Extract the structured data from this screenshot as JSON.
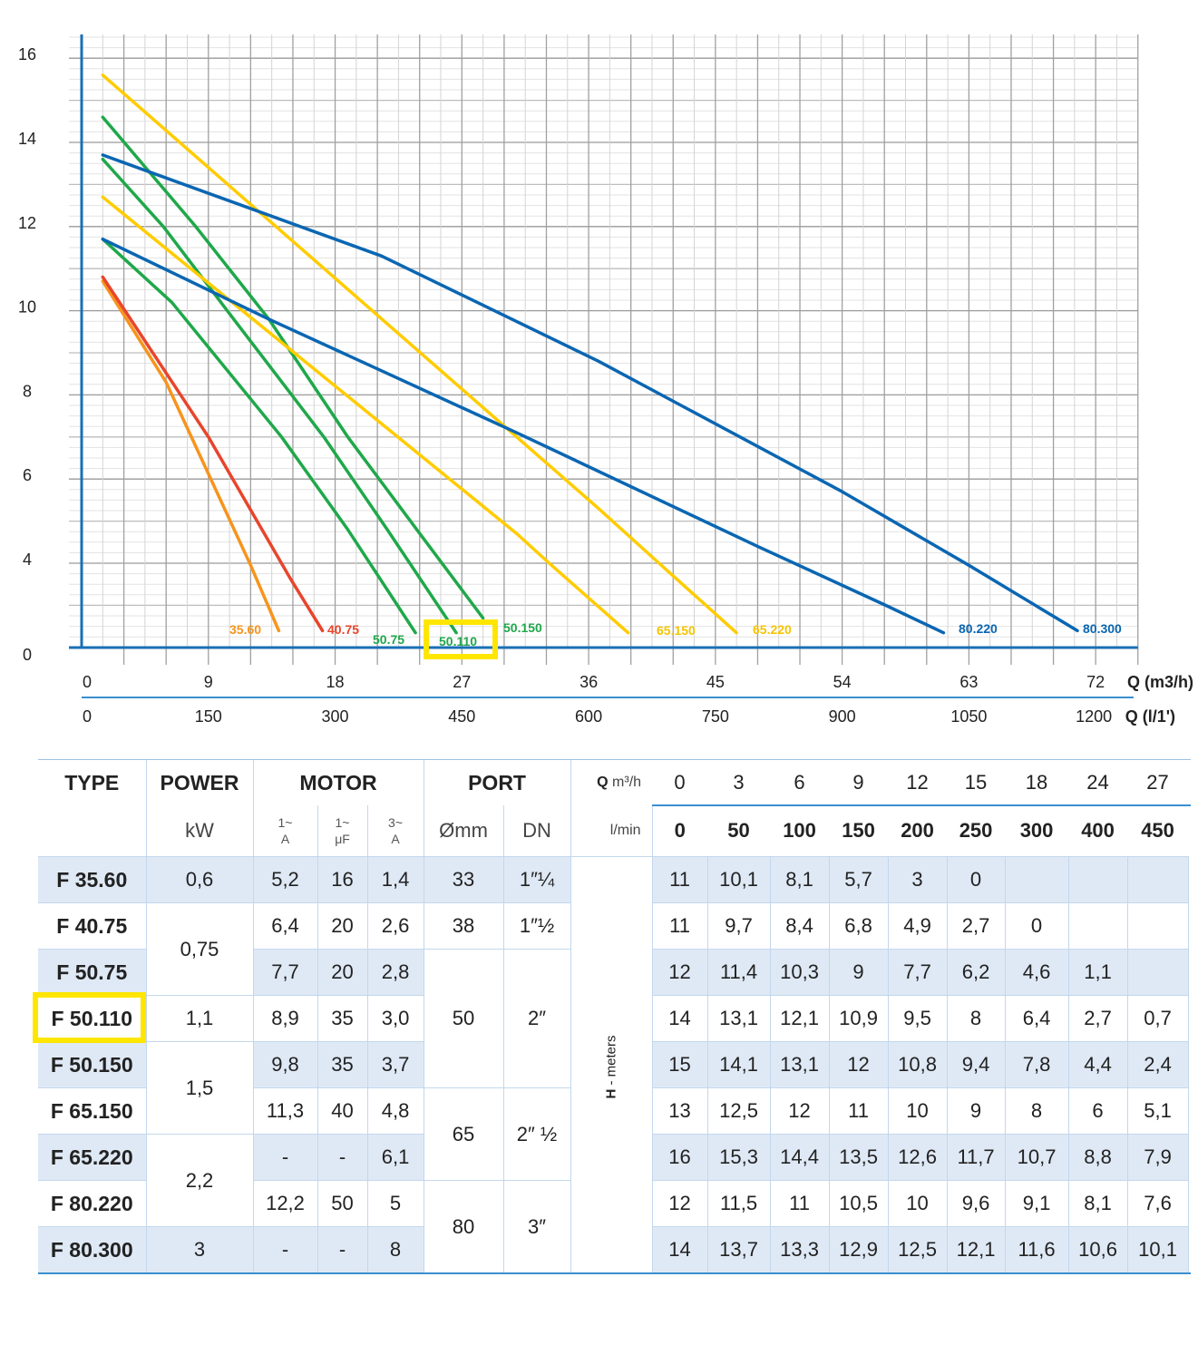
{
  "chart_data": {
    "type": "line",
    "xlabel": "Q (m3/h)",
    "xlabel2": "Q (l/1')",
    "x_ticks": [
      "0",
      "9",
      "18",
      "27",
      "36",
      "45",
      "54",
      "63",
      "72"
    ],
    "x2_ticks": [
      "0",
      "150",
      "300",
      "450",
      "600",
      "750",
      "900",
      "1050",
      "1200"
    ],
    "y_ticks": [
      "0",
      "4",
      "6",
      "8",
      "10",
      "12",
      "14",
      "16"
    ],
    "xlim": [
      0,
      75
    ],
    "ylim": [
      0,
      16
    ],
    "grid": true,
    "highlight": {
      "series": "50.110",
      "color": "#ffe600"
    },
    "axis_color": "#1a6fb5",
    "series": [
      {
        "name": "35.60",
        "color": "#f7941d",
        "points": [
          [
            1.5,
            10.7
          ],
          [
            6.0,
            8.3
          ],
          [
            12.0,
            3.9
          ],
          [
            14.0,
            0.8
          ]
        ]
      },
      {
        "name": "40.75",
        "color": "#e8452c",
        "points": [
          [
            1.5,
            10.8
          ],
          [
            9.0,
            7.0
          ],
          [
            14.8,
            3.3
          ],
          [
            17.1,
            0.8
          ]
        ]
      },
      {
        "name": "50.75",
        "color": "#1fa84a",
        "points": [
          [
            1.5,
            11.7
          ],
          [
            6.4,
            10.2
          ],
          [
            14.2,
            7.0
          ],
          [
            18.9,
            4.8
          ],
          [
            23.7,
            0.7
          ]
        ]
      },
      {
        "name": "50.110",
        "color": "#1fa84a",
        "points": [
          [
            1.5,
            13.6
          ],
          [
            5.8,
            12.0
          ],
          [
            10.8,
            9.8
          ],
          [
            17.2,
            7.0
          ],
          [
            21.7,
            4.8
          ],
          [
            26.6,
            0.7
          ]
        ]
      },
      {
        "name": "50.150",
        "color": "#1fa84a",
        "points": [
          [
            1.5,
            14.6
          ],
          [
            8.1,
            12.0
          ],
          [
            13.3,
            9.8
          ],
          [
            18.9,
            7.0
          ],
          [
            23.8,
            4.8
          ],
          [
            28.5,
            1.4
          ]
        ]
      },
      {
        "name": "65.150",
        "color": "#ffcc00",
        "points": [
          [
            1.5,
            12.7
          ],
          [
            30.9,
            4.7
          ],
          [
            33.2,
            4.0
          ],
          [
            38.8,
            0.7
          ]
        ]
      },
      {
        "name": "65.220",
        "color": "#ffcc00",
        "points": [
          [
            1.5,
            15.6
          ],
          [
            36.7,
            5.3
          ],
          [
            41.0,
            4.0
          ],
          [
            46.5,
            0.7
          ]
        ]
      },
      {
        "name": "80.220",
        "color": "#0a66b2",
        "points": [
          [
            1.5,
            11.7
          ],
          [
            13.3,
            9.8
          ],
          [
            30.9,
            7.1
          ],
          [
            48.0,
            4.4
          ],
          [
            57.1,
            2.0
          ],
          [
            61.2,
            0.7
          ]
        ]
      },
      {
        "name": "80.300",
        "color": "#0a66b2",
        "points": [
          [
            1.5,
            13.7
          ],
          [
            21.3,
            11.3
          ],
          [
            36.7,
            8.8
          ],
          [
            54.0,
            5.7
          ],
          [
            63.0,
            3.9
          ],
          [
            70.7,
            0.8
          ]
        ]
      }
    ]
  },
  "table": {
    "headers": {
      "type": "TYPE",
      "power": "POWER",
      "motor": "MOTOR",
      "port": "PORT",
      "q": "Q",
      "q_unit": "m³/h",
      "lmin": "l/min",
      "kw": "kW",
      "motor_sub": [
        [
          "1~",
          "A"
        ],
        [
          "1~",
          "μF"
        ],
        [
          "3~",
          "A"
        ]
      ],
      "port_sub": [
        "Ømm",
        "DN"
      ],
      "h_label": "H - meters"
    },
    "q_m3h": [
      "0",
      "3",
      "6",
      "9",
      "12",
      "15",
      "18",
      "24",
      "27"
    ],
    "q_lmin": [
      "0",
      "50",
      "100",
      "150",
      "200",
      "250",
      "300",
      "400",
      "450"
    ],
    "power": [
      "0,6",
      "0,75",
      "1,1",
      "1,5",
      "2,2",
      "3"
    ],
    "port": [
      [
        "33",
        "1″¼"
      ],
      [
        "38",
        "1″½"
      ],
      [
        "50",
        "2″"
      ],
      [
        "65",
        "2″ ½"
      ],
      [
        "80",
        "3″"
      ]
    ],
    "highlighted_type": "F 50.110",
    "rows": [
      {
        "type": "F 35.60",
        "motor": [
          "5,2",
          "16",
          "1,4"
        ],
        "h": [
          "11",
          "10,1",
          "8,1",
          "5,7",
          "3",
          "0",
          "",
          "",
          ""
        ]
      },
      {
        "type": "F 40.75",
        "motor": [
          "6,4",
          "20",
          "2,6"
        ],
        "h": [
          "11",
          "9,7",
          "8,4",
          "6,8",
          "4,9",
          "2,7",
          "0",
          "",
          ""
        ]
      },
      {
        "type": "F 50.75",
        "motor": [
          "7,7",
          "20",
          "2,8"
        ],
        "h": [
          "12",
          "11,4",
          "10,3",
          "9",
          "7,7",
          "6,2",
          "4,6",
          "1,1",
          ""
        ]
      },
      {
        "type": "F 50.110",
        "motor": [
          "8,9",
          "35",
          "3,0"
        ],
        "h": [
          "14",
          "13,1",
          "12,1",
          "10,9",
          "9,5",
          "8",
          "6,4",
          "2,7",
          "0,7"
        ]
      },
      {
        "type": "F 50.150",
        "motor": [
          "9,8",
          "35",
          "3,7"
        ],
        "h": [
          "15",
          "14,1",
          "13,1",
          "12",
          "10,8",
          "9,4",
          "7,8",
          "4,4",
          "2,4"
        ]
      },
      {
        "type": "F 65.150",
        "motor": [
          "11,3",
          "40",
          "4,8"
        ],
        "h": [
          "13",
          "12,5",
          "12",
          "11",
          "10",
          "9",
          "8",
          "6",
          "5,1"
        ]
      },
      {
        "type": "F 65.220",
        "motor": [
          "-",
          "-",
          "6,1"
        ],
        "h": [
          "16",
          "15,3",
          "14,4",
          "13,5",
          "12,6",
          "11,7",
          "10,7",
          "8,8",
          "7,9"
        ]
      },
      {
        "type": "F 80.220",
        "motor": [
          "12,2",
          "50",
          "5"
        ],
        "h": [
          "12",
          "11,5",
          "11",
          "10,5",
          "10",
          "9,6",
          "9,1",
          "8,1",
          "7,6"
        ]
      },
      {
        "type": "F 80.300",
        "motor": [
          "-",
          "-",
          "8"
        ],
        "h": [
          "14",
          "13,7",
          "13,3",
          "12,9",
          "12,5",
          "12,1",
          "11,6",
          "10,6",
          "10,1"
        ]
      }
    ]
  }
}
